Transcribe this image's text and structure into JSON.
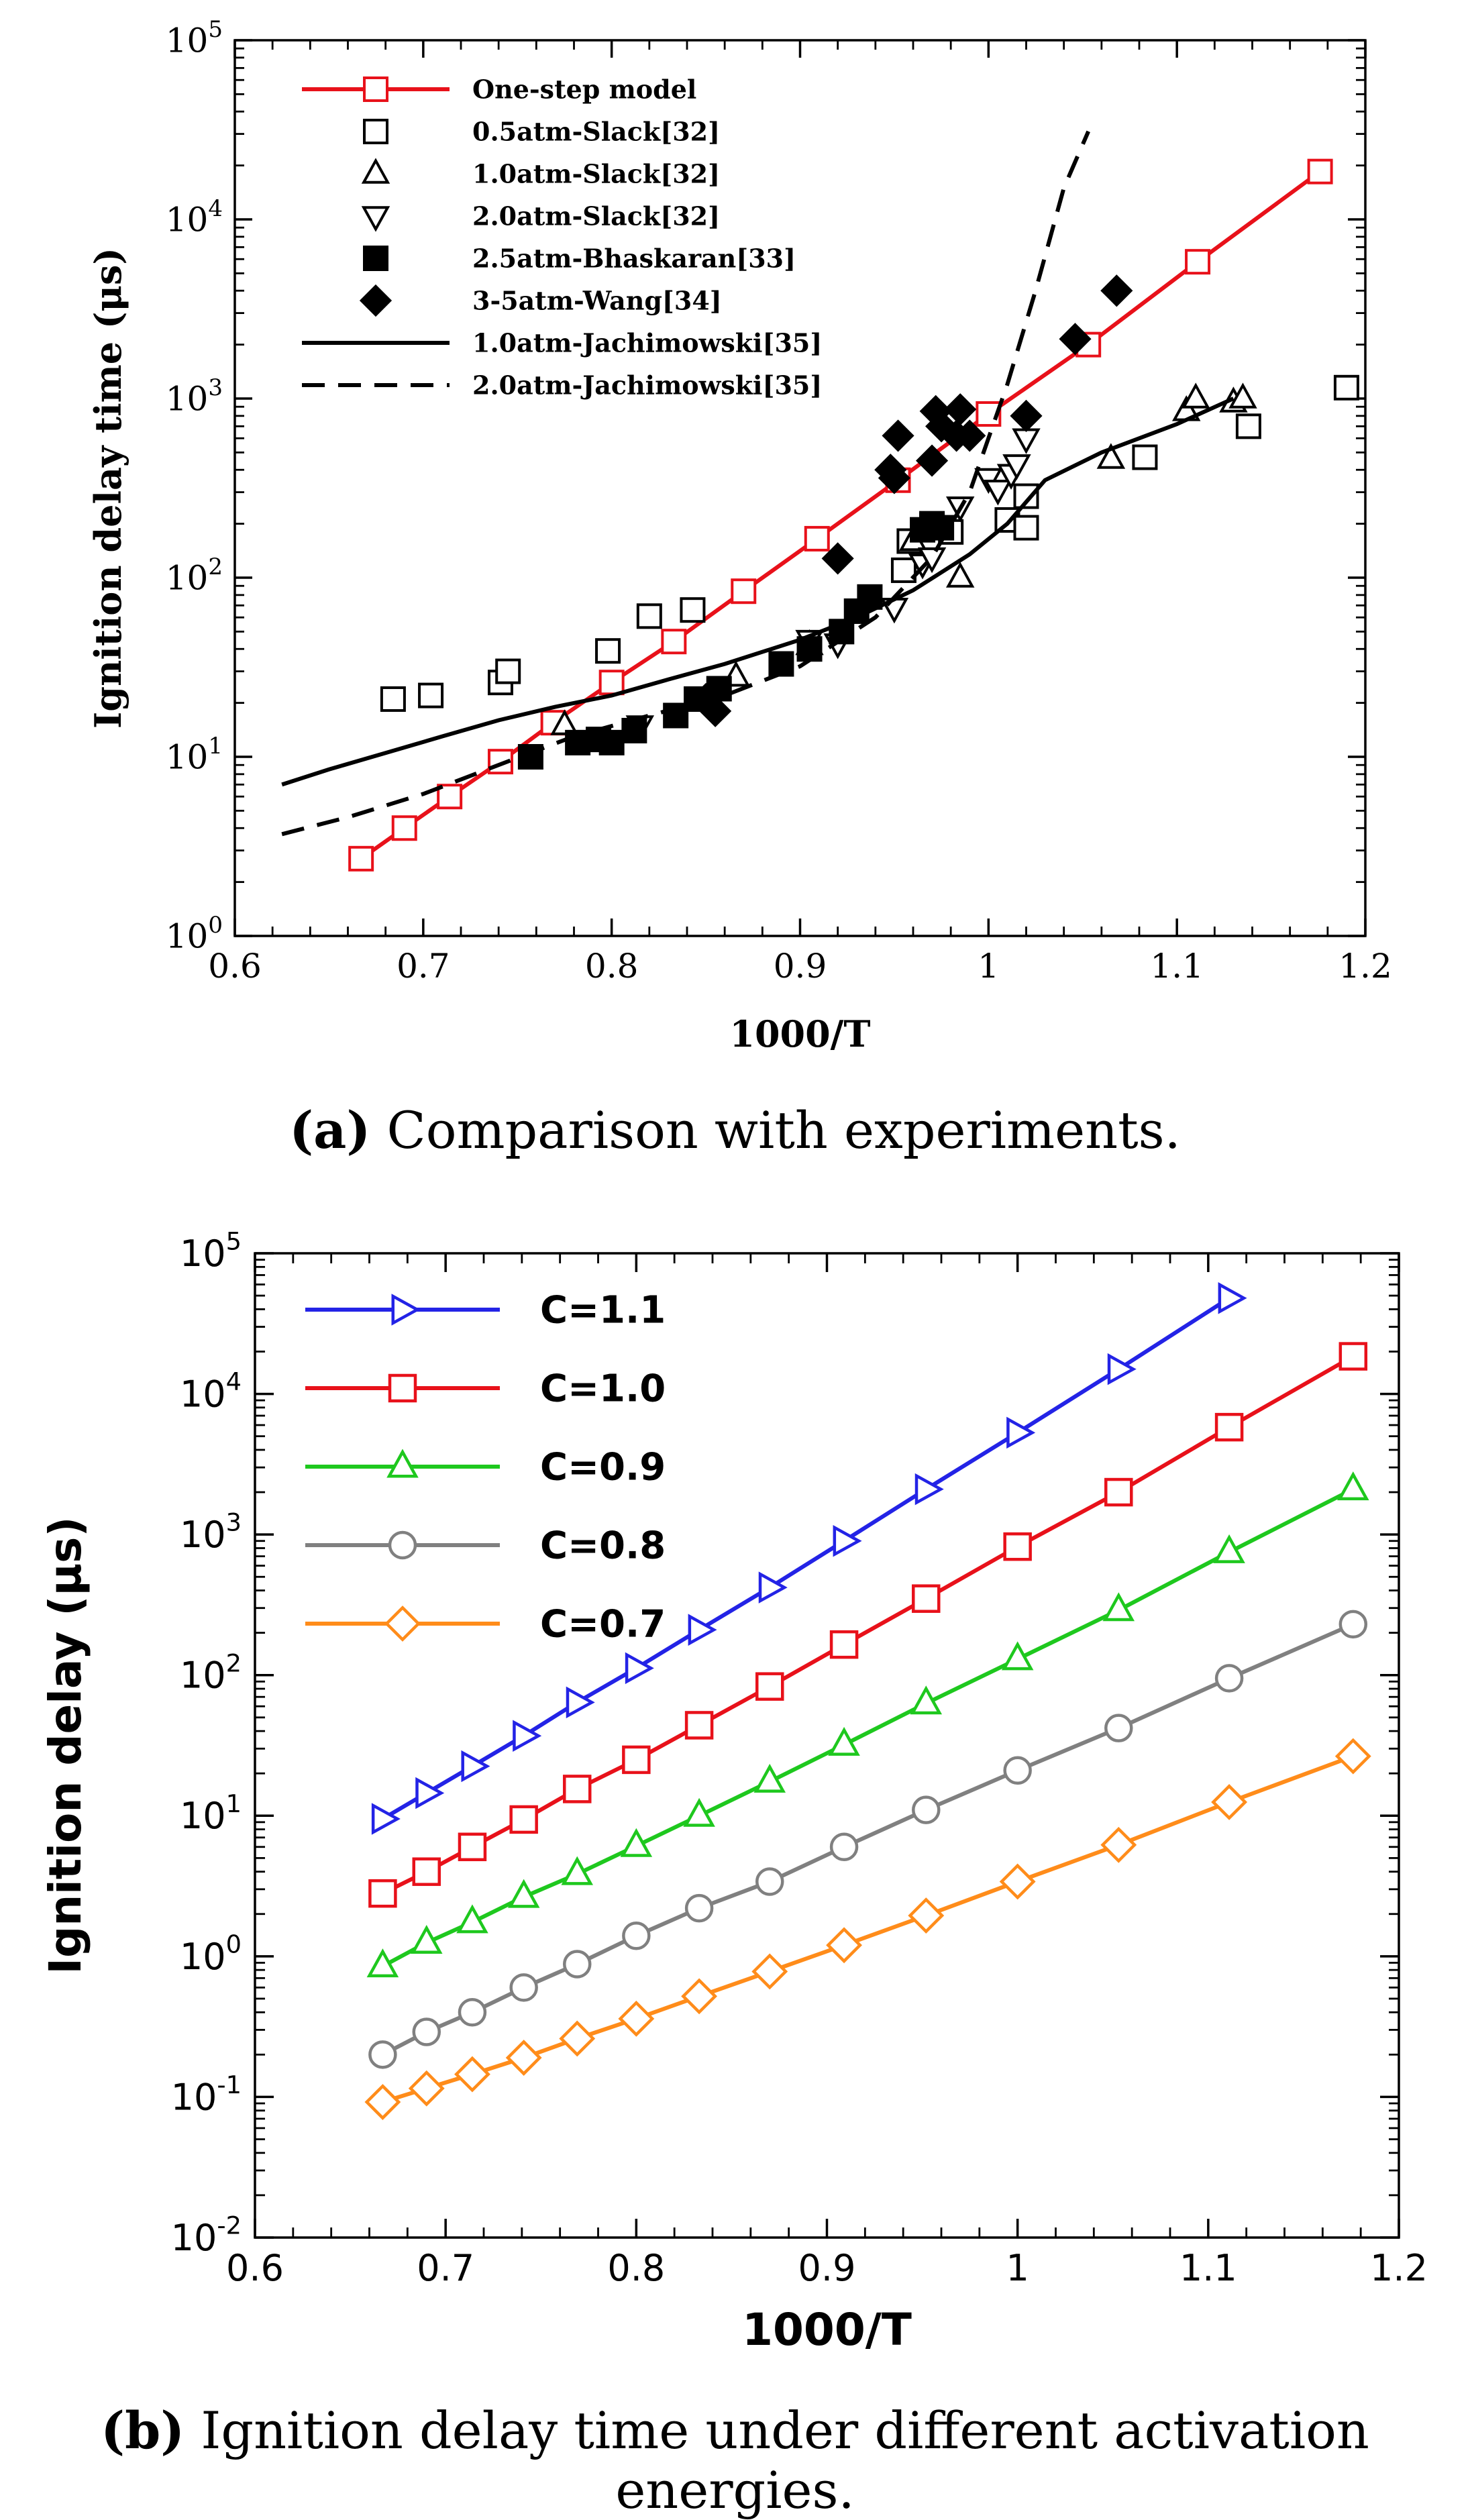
{
  "chart_data": [
    {
      "type": "scatter",
      "panel": "a",
      "xscale": "linear",
      "yscale": "log",
      "xlabel": "1000/T",
      "ylabel": "Ignition delay time (μs)",
      "xlim": [
        0.6,
        1.2
      ],
      "ylim": [
        1,
        100000
      ],
      "xticks": [
        "0.6",
        "0.7",
        "0.8",
        "0.9",
        "1",
        "1.1",
        "1.2"
      ],
      "yticks": [
        {
          "base": "10",
          "exp": "0"
        },
        {
          "base": "10",
          "exp": "1"
        },
        {
          "base": "10",
          "exp": "2"
        },
        {
          "base": "10",
          "exp": "3"
        },
        {
          "base": "10",
          "exp": "4"
        },
        {
          "base": "10",
          "exp": "5"
        }
      ],
      "legend_position": "top-left",
      "series": [
        {
          "name": "One-step model",
          "style": "line+open-square",
          "color": "#e8111a",
          "x": [
            0.667,
            0.69,
            0.714,
            0.741,
            0.769,
            0.8,
            0.833,
            0.87,
            0.909,
            0.952,
            1.0,
            1.053,
            1.111,
            1.176
          ],
          "y": [
            2.7,
            4.0,
            6.0,
            9.4,
            15.5,
            26,
            44,
            84,
            165,
            350,
            820,
            2000,
            5800,
            18500
          ]
        },
        {
          "name": "0.5atm-Slack[32]",
          "style": "open-square",
          "color": "#000000",
          "x": [
            0.684,
            0.704,
            0.741,
            0.745,
            0.798,
            0.82,
            0.843,
            0.955,
            0.958,
            0.97,
            0.98,
            1.01,
            1.02,
            1.02,
            1.083,
            1.138,
            1.19
          ],
          "y": [
            21,
            22,
            26,
            30,
            39,
            61,
            66,
            110,
            160,
            195,
            180,
            210,
            190,
            285,
            470,
            700,
            1150
          ]
        },
        {
          "name": "1.0atm-Slack[32]",
          "style": "open-triangle-up",
          "color": "#000000",
          "x": [
            0.775,
            0.866,
            0.905,
            0.96,
            0.985,
            1.065,
            1.105,
            1.11,
            1.13,
            1.135
          ],
          "y": [
            15,
            28,
            42,
            160,
            100,
            460,
            850,
            1000,
            950,
            1000
          ]
        },
        {
          "name": "2.0atm-Slack[32]",
          "style": "open-triangle-down",
          "color": "#000000",
          "x": [
            0.815,
            0.905,
            0.92,
            0.95,
            0.965,
            0.97,
            0.985,
            1.0,
            1.005,
            1.012,
            1.015,
            1.02
          ],
          "y": [
            15,
            45,
            43,
            68,
            120,
            130,
            250,
            360,
            310,
            380,
            430,
            600
          ]
        },
        {
          "name": "2.5atm-Bhaskaran[33]",
          "style": "filled-square",
          "color": "#000000",
          "x": [
            0.757,
            0.782,
            0.793,
            0.8,
            0.812,
            0.834,
            0.845,
            0.857,
            0.89,
            0.905,
            0.922,
            0.93,
            0.937,
            0.965,
            0.97,
            0.975
          ],
          "y": [
            10,
            12,
            12.5,
            12,
            14,
            17,
            21,
            24,
            33,
            40,
            50,
            65,
            78,
            185,
            200,
            190
          ]
        },
        {
          "name": "3-5atm-Wang[34]",
          "style": "filled-diamond",
          "color": "#000000",
          "x": [
            0.85,
            0.855,
            0.92,
            0.948,
            0.95,
            0.952,
            0.97,
            0.972,
            0.975,
            0.983,
            0.985,
            0.99,
            1.02,
            1.046,
            1.068
          ],
          "y": [
            21,
            18,
            128,
            400,
            360,
            620,
            450,
            850,
            700,
            620,
            870,
            620,
            800,
            2150,
            4000
          ]
        },
        {
          "name": "1.0atm-Jachimowski[35]",
          "style": "solid-line",
          "color": "#000000",
          "x": [
            0.625,
            0.65,
            0.68,
            0.71,
            0.74,
            0.77,
            0.8,
            0.83,
            0.86,
            0.9,
            0.93,
            0.96,
            0.99,
            1.01,
            1.03,
            1.06,
            1.1,
            1.13
          ],
          "y": [
            7.0,
            8.5,
            10.5,
            13,
            16,
            19,
            22,
            27,
            33,
            45,
            60,
            85,
            135,
            200,
            350,
            500,
            720,
            1000
          ]
        },
        {
          "name": "2.0atm-Jachimowski[35]",
          "style": "dashed-line",
          "color": "#000000",
          "x": [
            0.625,
            0.66,
            0.7,
            0.74,
            0.78,
            0.82,
            0.86,
            0.9,
            0.94,
            0.97,
            0.99,
            1.0,
            1.01,
            1.025,
            1.04,
            1.053
          ],
          "y": [
            3.7,
            4.6,
            6.2,
            9,
            13,
            17,
            22,
            32,
            60,
            130,
            300,
            600,
            1200,
            4000,
            15000,
            31000
          ]
        }
      ]
    },
    {
      "type": "line",
      "panel": "b",
      "xscale": "linear",
      "yscale": "log",
      "xlabel": "1000/T",
      "ylabel": "Ignition delay (μs)",
      "xlim": [
        0.6,
        1.2
      ],
      "ylim": [
        0.01,
        100000
      ],
      "xticks": [
        "0.6",
        "0.7",
        "0.8",
        "0.9",
        "1",
        "1.1",
        "1.2"
      ],
      "yticks": [
        {
          "base": "10",
          "exp": "-2"
        },
        {
          "base": "10",
          "exp": "-1"
        },
        {
          "base": "10",
          "exp": "0"
        },
        {
          "base": "10",
          "exp": "1"
        },
        {
          "base": "10",
          "exp": "2"
        },
        {
          "base": "10",
          "exp": "3"
        },
        {
          "base": "10",
          "exp": "4"
        },
        {
          "base": "10",
          "exp": "5"
        }
      ],
      "legend_position": "top-left",
      "series": [
        {
          "name": "C=1.1",
          "marker": "triangle-right",
          "color": "#2323e6",
          "x": [
            0.667,
            0.69,
            0.714,
            0.741,
            0.769,
            0.8,
            0.833,
            0.87,
            0.909,
            0.952,
            1.0,
            1.053,
            1.111
          ],
          "y": [
            9.5,
            14.5,
            22.5,
            37,
            64,
            112,
            210,
            420,
            900,
            2100,
            5300,
            15000,
            48000
          ]
        },
        {
          "name": "C=1.0",
          "marker": "square",
          "color": "#e8111a",
          "x": [
            0.667,
            0.69,
            0.714,
            0.741,
            0.769,
            0.8,
            0.833,
            0.87,
            0.909,
            0.952,
            1.0,
            1.053,
            1.111,
            1.176
          ],
          "y": [
            2.8,
            4.0,
            6.0,
            9.4,
            15.5,
            25,
            44,
            83,
            165,
            350,
            820,
            2000,
            5800,
            18500
          ]
        },
        {
          "name": "C=0.9",
          "marker": "triangle-up",
          "color": "#1ec81e",
          "x": [
            0.667,
            0.69,
            0.714,
            0.741,
            0.769,
            0.8,
            0.833,
            0.87,
            0.909,
            0.952,
            1.0,
            1.053,
            1.111,
            1.176
          ],
          "y": [
            0.85,
            1.25,
            1.75,
            2.65,
            3.85,
            6.1,
            10,
            17.5,
            32,
            63,
            130,
            290,
            750,
            2100
          ]
        },
        {
          "name": "C=0.8",
          "marker": "circle",
          "color": "#808080",
          "x": [
            0.667,
            0.69,
            0.714,
            0.741,
            0.769,
            0.8,
            0.833,
            0.87,
            0.909,
            0.952,
            1.0,
            1.053,
            1.111,
            1.176
          ],
          "y": [
            0.2,
            0.29,
            0.4,
            0.6,
            0.88,
            1.4,
            2.2,
            3.4,
            6.0,
            11,
            21,
            42,
            95,
            230
          ]
        },
        {
          "name": "C=0.7",
          "marker": "diamond",
          "color": "#ff8c1a",
          "x": [
            0.667,
            0.69,
            0.714,
            0.741,
            0.769,
            0.8,
            0.833,
            0.87,
            0.909,
            0.952,
            1.0,
            1.053,
            1.111,
            1.176
          ],
          "y": [
            0.092,
            0.115,
            0.145,
            0.19,
            0.26,
            0.36,
            0.52,
            0.78,
            1.2,
            1.95,
            3.4,
            6.2,
            12.5,
            26.5
          ]
        }
      ]
    }
  ],
  "captions": {
    "a": {
      "label": "(a)",
      "text": " Comparison with experiments."
    },
    "b": {
      "label": "(b)",
      "text": " Ignition delay time under different activation energies."
    }
  }
}
